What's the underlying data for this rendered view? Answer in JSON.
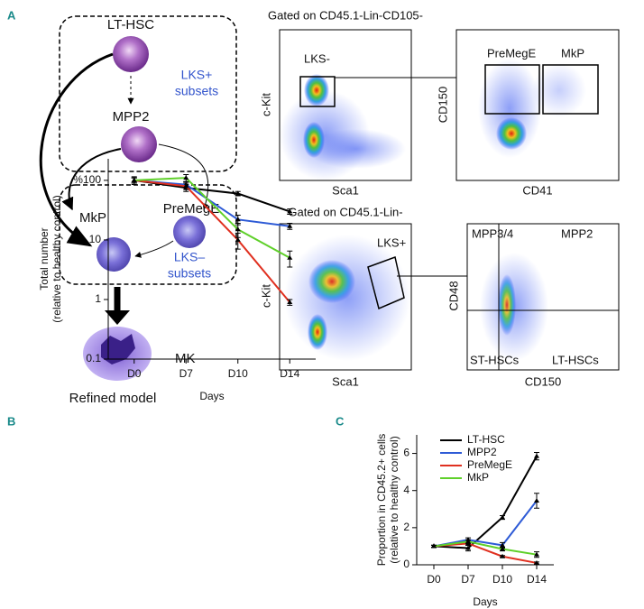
{
  "panel_labels": [
    "A",
    "B",
    "C"
  ],
  "diagram": {
    "lt_hsc": "LT-HSC",
    "mpp2": "MPP2",
    "lks_plus": [
      "LKS+",
      "subsets"
    ],
    "mkp": "MkP",
    "premege": "PreMegE",
    "lks_minus": [
      "LKS–",
      "subsets"
    ],
    "mk": "MK",
    "caption": "Refined model"
  },
  "flow": [
    {
      "title": "Gated on CD45.1-Lin-CD105-",
      "x_label": "Sca1",
      "y_label": "c-Kit",
      "gates": [
        "LKS-"
      ]
    },
    {
      "x_label": "CD41",
      "y_label": "CD150",
      "gates": [
        "PreMegE",
        "MkP"
      ]
    },
    {
      "title": "Gated on CD45.1-Lin-",
      "x_label": "Sca1",
      "y_label": "c-Kit",
      "gates": [
        "LKS+"
      ]
    },
    {
      "x_label": "CD150",
      "y_label": "CD48",
      "gates": [
        "MPP3/4",
        "MPP2",
        "ST-HSCs",
        "LT-HSCs"
      ]
    }
  ],
  "chart_data": [
    {
      "type": "line",
      "y_label": [
        "Total number",
        "(relative to healthy control)"
      ],
      "x_label": "Days",
      "categories": [
        "D0",
        "D7",
        "D10",
        "D14"
      ],
      "log_y": true,
      "ylim": [
        0.1,
        230
      ],
      "yticks": [
        0.1,
        1,
        10,
        {
          "value": 100,
          "label": "%100"
        }
      ],
      "series": [
        {
          "color": "#000000",
          "values": [
            100,
            75,
            60,
            30
          ],
          "errors": [
            10,
            10,
            5,
            3
          ]
        },
        {
          "color": "#2e5bd6",
          "values": [
            100,
            85,
            22,
            17
          ],
          "errors": [
            10,
            10,
            4,
            2
          ]
        },
        {
          "color": "#e03020",
          "values": [
            100,
            80,
            10,
            0.9
          ],
          "errors": [
            15,
            10,
            3,
            0.1
          ]
        },
        {
          "color": "#5fd02a",
          "values": [
            100,
            110,
            15,
            5
          ],
          "errors": [
            10,
            15,
            4,
            1.5
          ]
        }
      ]
    },
    {
      "type": "line",
      "y_label": [
        "Proportion in CD45.2+ cells",
        "(relative to healthy control)"
      ],
      "x_label": "Days",
      "categories": [
        "D0",
        "D7",
        "D10",
        "D14"
      ],
      "ylim": [
        0,
        7
      ],
      "yticks": [
        0,
        2,
        4,
        6
      ],
      "legend": "right",
      "series": [
        {
          "name": "LT-HSC",
          "color": "#000000",
          "values": [
            1,
            0.9,
            2.55,
            5.85
          ],
          "errors": [
            0.05,
            0.15,
            0.1,
            0.2
          ]
        },
        {
          "name": "MPP2",
          "color": "#2e5bd6",
          "values": [
            1,
            1.35,
            1.05,
            3.45
          ],
          "errors": [
            0.05,
            0.1,
            0.15,
            0.4
          ]
        },
        {
          "name": "PreMegE",
          "color": "#e03020",
          "values": [
            1,
            1.15,
            0.45,
            0.1
          ],
          "errors": [
            0.05,
            0.1,
            0.05,
            0.05
          ]
        },
        {
          "name": "MkP",
          "color": "#5fd02a",
          "values": [
            1,
            1.25,
            0.85,
            0.55
          ],
          "errors": [
            0.05,
            0.1,
            0.1,
            0.15
          ]
        }
      ]
    }
  ]
}
